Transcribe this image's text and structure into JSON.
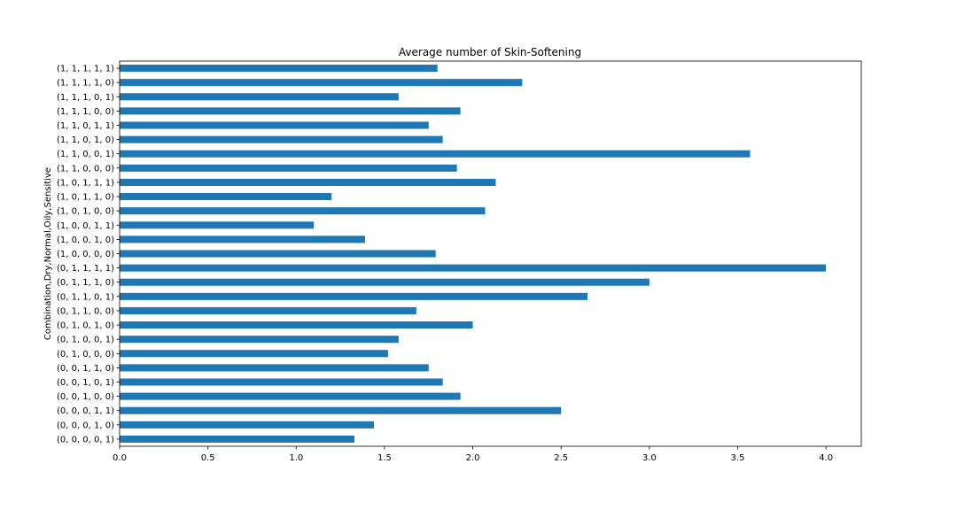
{
  "chart_data": {
    "type": "bar",
    "orientation": "horizontal",
    "title": "Average number of Skin-Softening",
    "xlabel": "",
    "ylabel": "Combination,Dry,Normal,Oily,Sensitive",
    "xlim": [
      0,
      4.2
    ],
    "xticks": [
      "0.0",
      "0.5",
      "1.0",
      "1.5",
      "2.0",
      "2.5",
      "3.0",
      "3.5",
      "4.0"
    ],
    "grid": false,
    "bar_color": "#1f77b4",
    "categories": [
      "(0, 0, 0, 0, 1)",
      "(0, 0, 0, 1, 0)",
      "(0, 0, 0, 1, 1)",
      "(0, 0, 1, 0, 0)",
      "(0, 0, 1, 0, 1)",
      "(0, 0, 1, 1, 0)",
      "(0, 1, 0, 0, 0)",
      "(0, 1, 0, 0, 1)",
      "(0, 1, 0, 1, 0)",
      "(0, 1, 1, 0, 0)",
      "(0, 1, 1, 0, 1)",
      "(0, 1, 1, 1, 0)",
      "(0, 1, 1, 1, 1)",
      "(1, 0, 0, 0, 0)",
      "(1, 0, 0, 1, 0)",
      "(1, 0, 0, 1, 1)",
      "(1, 0, 1, 0, 0)",
      "(1, 0, 1, 1, 0)",
      "(1, 0, 1, 1, 1)",
      "(1, 1, 0, 0, 0)",
      "(1, 1, 0, 0, 1)",
      "(1, 1, 0, 1, 0)",
      "(1, 1, 0, 1, 1)",
      "(1, 1, 1, 0, 0)",
      "(1, 1, 1, 0, 1)",
      "(1, 1, 1, 1, 0)",
      "(1, 1, 1, 1, 1)"
    ],
    "values": [
      1.33,
      1.44,
      2.5,
      1.93,
      1.83,
      1.75,
      1.52,
      1.58,
      2.0,
      1.68,
      2.65,
      3.0,
      4.0,
      1.79,
      1.39,
      1.1,
      2.07,
      1.2,
      2.13,
      1.91,
      3.57,
      1.83,
      1.75,
      1.93,
      1.58,
      2.28,
      1.8
    ]
  }
}
